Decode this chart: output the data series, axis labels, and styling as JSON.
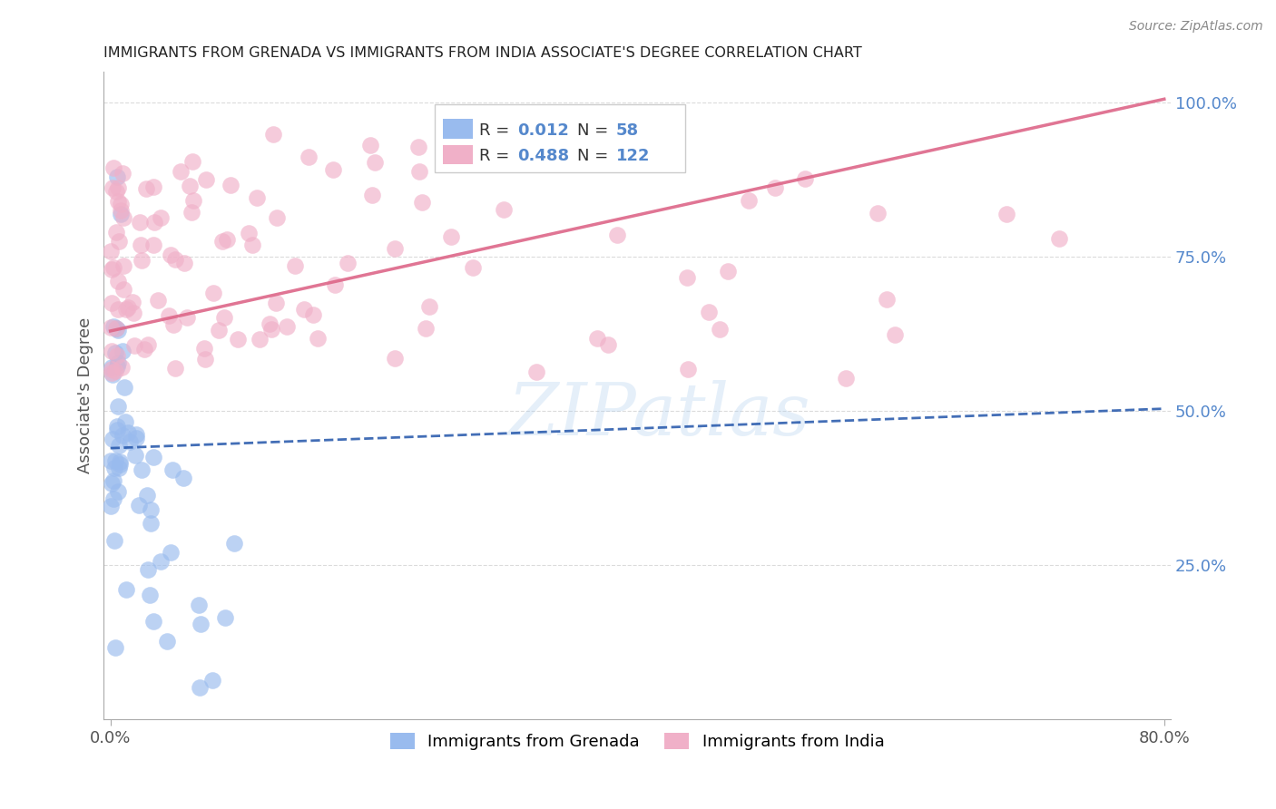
{
  "title": "IMMIGRANTS FROM GRENADA VS IMMIGRANTS FROM INDIA ASSOCIATE'S DEGREE CORRELATION CHART",
  "source": "Source: ZipAtlas.com",
  "ylabel": "Associate's Degree",
  "watermark": "ZIPatlas",
  "blue_R": 0.012,
  "blue_N": 58,
  "pink_R": 0.488,
  "pink_N": 122,
  "xmin": 0.0,
  "xmax": 0.8,
  "ymin": 0.0,
  "ymax": 1.05,
  "yticks": [
    0.25,
    0.5,
    0.75,
    1.0
  ],
  "ytick_labels": [
    "25.0%",
    "50.0%",
    "75.0%",
    "100.0%"
  ],
  "xtick_labels": [
    "0.0%",
    "80.0%"
  ],
  "background_color": "#ffffff",
  "grid_color": "#cccccc",
  "blue_scatter_color": "#99bbee",
  "pink_scatter_color": "#f0b0c8",
  "blue_line_color": "#2255aa",
  "pink_line_color": "#dd6688",
  "tick_color": "#5588cc",
  "title_color": "#222222",
  "source_color": "#888888",
  "blue_label": "Immigrants from Grenada",
  "pink_label": "Immigrants from India",
  "legend_blue_R_text": "R = 0.012",
  "legend_blue_N_text": "N =  58",
  "legend_pink_R_text": "R = 0.488",
  "legend_pink_N_text": "N = 122",
  "blue_line_intercept": 0.44,
  "blue_line_slope": 0.08,
  "pink_line_intercept": 0.63,
  "pink_line_slope": 0.47
}
